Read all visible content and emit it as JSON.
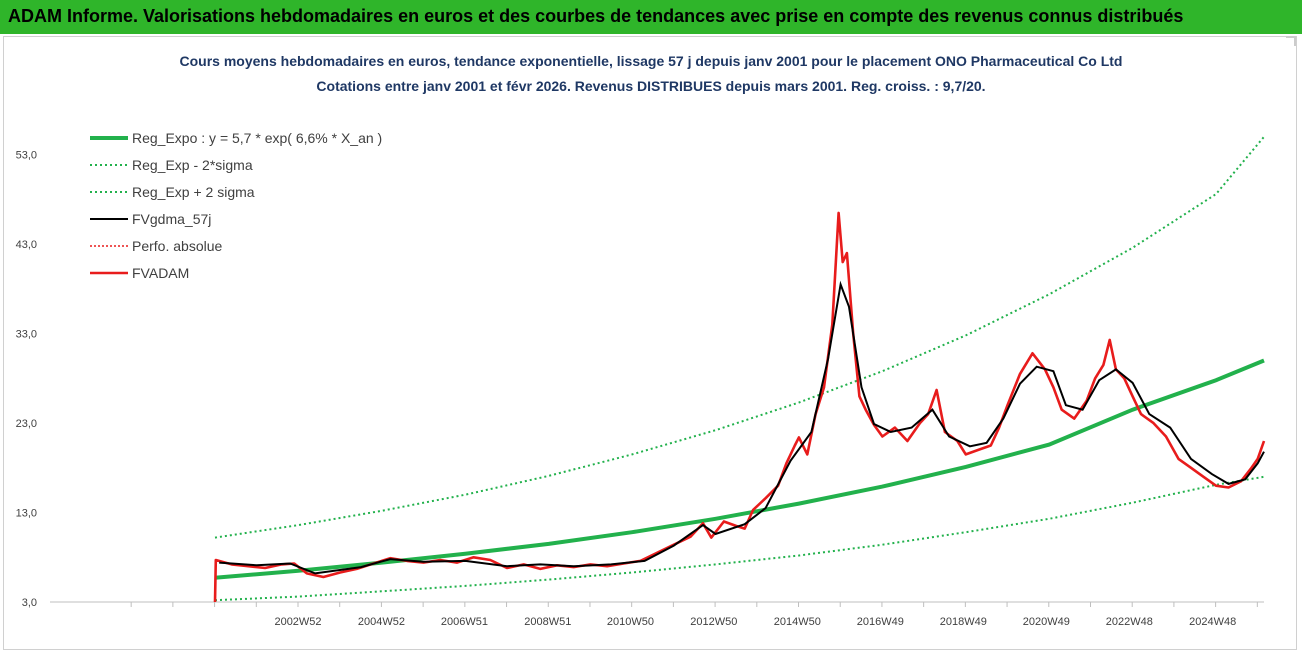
{
  "header": {
    "title": "ADAM Informe. Valorisations hebdomadaires en euros et des courbes de tendances avec prise en compte des revenus connus distribués",
    "bg_color": "#2fb52a"
  },
  "chart_data": {
    "type": "line",
    "title": "Cours moyens hebdomadaires en euros, tendance exponentielle, lissage 57 j depuis janv 2001 pour le placement ONO Pharmaceutical Co Ltd",
    "subtitle": "Cotations entre janv 2001 et févr 2026. Revenus DISTRIBUES depuis mars 2001. Reg. croiss. : 9,7/20.",
    "xlabel": "",
    "ylabel": "",
    "ylim": [
      3,
      58
    ],
    "xlim": [
      2001.0,
      2026.15
    ],
    "y_ticks": [
      "3,0",
      "13,0",
      "23,0",
      "33,0",
      "43,0",
      "53,0"
    ],
    "y_tick_values": [
      3,
      13,
      23,
      33,
      43,
      53
    ],
    "x_ticks": [
      "2002W52",
      "2004W52",
      "2006W51",
      "2008W51",
      "2010W50",
      "2012W50",
      "2014W50",
      "2016W49",
      "2018W49",
      "2020W49",
      "2022W48",
      "2024W48"
    ],
    "x_tick_values": [
      2002.99,
      2004.99,
      2006.98,
      2008.98,
      2010.96,
      2012.96,
      2014.96,
      2016.95,
      2018.94,
      2020.93,
      2022.92,
      2024.92
    ],
    "grid": false,
    "legend_position": "top-left",
    "colors": {
      "reg_expo": "#22b14c",
      "band": "#22b14c",
      "smooth": "#000000",
      "perf": "#e81c1c",
      "price": "#e81c1c"
    },
    "series": [
      {
        "name": "Reg_Expo : y = 5,7 * exp( 6,6% *  X_an )",
        "role": "reg",
        "style": "thick-green",
        "points": [
          [
            2001.0,
            5.7
          ],
          [
            2003.0,
            6.5
          ],
          [
            2005.0,
            7.4
          ],
          [
            2007.0,
            8.4
          ],
          [
            2009.0,
            9.5
          ],
          [
            2011.0,
            10.8
          ],
          [
            2013.0,
            12.3
          ],
          [
            2015.0,
            14.0
          ],
          [
            2017.0,
            15.9
          ],
          [
            2019.0,
            18.1
          ],
          [
            2021.0,
            20.6
          ],
          [
            2023.0,
            24.5
          ],
          [
            2025.0,
            27.8
          ],
          [
            2026.15,
            30.0
          ]
        ]
      },
      {
        "name": "Reg_Exp - 2*sigma",
        "role": "band",
        "style": "dotted-green",
        "points": [
          [
            2001.0,
            3.2
          ],
          [
            2003.0,
            3.6
          ],
          [
            2005.0,
            4.2
          ],
          [
            2007.0,
            4.8
          ],
          [
            2009.0,
            5.5
          ],
          [
            2011.0,
            6.3
          ],
          [
            2013.0,
            7.2
          ],
          [
            2015.0,
            8.2
          ],
          [
            2017.0,
            9.4
          ],
          [
            2019.0,
            10.8
          ],
          [
            2021.0,
            12.3
          ],
          [
            2023.0,
            14.1
          ],
          [
            2025.0,
            16.1
          ],
          [
            2026.15,
            17.0
          ]
        ]
      },
      {
        "name": "Reg_Exp + 2 sigma",
        "role": "band",
        "style": "dotted-green",
        "points": [
          [
            2001.0,
            10.2
          ],
          [
            2003.0,
            11.6
          ],
          [
            2005.0,
            13.2
          ],
          [
            2007.0,
            15.0
          ],
          [
            2009.0,
            17.1
          ],
          [
            2011.0,
            19.5
          ],
          [
            2013.0,
            22.2
          ],
          [
            2015.0,
            25.3
          ],
          [
            2017.0,
            28.8
          ],
          [
            2019.0,
            32.8
          ],
          [
            2021.0,
            37.4
          ],
          [
            2023.0,
            42.6
          ],
          [
            2025.0,
            48.6
          ],
          [
            2026.15,
            55.0
          ]
        ]
      },
      {
        "name": "FVgdma_57j",
        "role": "smooth",
        "style": "thin-black",
        "points": [
          [
            2001.1,
            7.4
          ],
          [
            2002.0,
            7.1
          ],
          [
            2002.8,
            7.3
          ],
          [
            2003.4,
            6.2
          ],
          [
            2004.5,
            6.9
          ],
          [
            2005.2,
            7.8
          ],
          [
            2006.0,
            7.5
          ],
          [
            2007.0,
            7.6
          ],
          [
            2008.0,
            7.0
          ],
          [
            2008.8,
            7.2
          ],
          [
            2009.6,
            7.0
          ],
          [
            2010.5,
            7.2
          ],
          [
            2011.3,
            7.6
          ],
          [
            2012.0,
            9.3
          ],
          [
            2012.7,
            11.6
          ],
          [
            2013.0,
            10.6
          ],
          [
            2013.7,
            11.7
          ],
          [
            2014.2,
            13.5
          ],
          [
            2014.8,
            18.8
          ],
          [
            2015.3,
            22.0
          ],
          [
            2015.7,
            30.2
          ],
          [
            2016.0,
            38.5
          ],
          [
            2016.2,
            36.0
          ],
          [
            2016.5,
            27.0
          ],
          [
            2016.8,
            22.9
          ],
          [
            2017.2,
            22.0
          ],
          [
            2017.7,
            22.5
          ],
          [
            2018.2,
            24.5
          ],
          [
            2018.6,
            21.5
          ],
          [
            2019.1,
            20.4
          ],
          [
            2019.5,
            20.8
          ],
          [
            2019.9,
            23.5
          ],
          [
            2020.3,
            27.4
          ],
          [
            2020.7,
            29.3
          ],
          [
            2021.1,
            28.8
          ],
          [
            2021.4,
            25.0
          ],
          [
            2021.8,
            24.5
          ],
          [
            2022.2,
            27.8
          ],
          [
            2022.6,
            29.0
          ],
          [
            2023.0,
            27.5
          ],
          [
            2023.4,
            24.0
          ],
          [
            2023.9,
            22.5
          ],
          [
            2024.4,
            19.0
          ],
          [
            2024.9,
            17.3
          ],
          [
            2025.3,
            16.2
          ],
          [
            2025.7,
            16.7
          ],
          [
            2026.0,
            18.5
          ],
          [
            2026.15,
            19.8
          ]
        ]
      },
      {
        "name": "Perfo. absolue",
        "role": "perf",
        "style": "dotted-red",
        "points": []
      },
      {
        "name": "FVADAM",
        "role": "price",
        "style": "thick-red",
        "points": [
          [
            2001.0,
            3.0
          ],
          [
            2001.02,
            7.7
          ],
          [
            2001.4,
            7.2
          ],
          [
            2001.8,
            7.0
          ],
          [
            2002.2,
            6.8
          ],
          [
            2002.6,
            7.2
          ],
          [
            2002.9,
            7.3
          ],
          [
            2003.2,
            6.2
          ],
          [
            2003.6,
            5.8
          ],
          [
            2004.0,
            6.3
          ],
          [
            2004.4,
            6.7
          ],
          [
            2004.8,
            7.3
          ],
          [
            2005.2,
            7.9
          ],
          [
            2005.6,
            7.6
          ],
          [
            2006.0,
            7.4
          ],
          [
            2006.4,
            7.7
          ],
          [
            2006.8,
            7.4
          ],
          [
            2007.2,
            8.0
          ],
          [
            2007.6,
            7.7
          ],
          [
            2008.0,
            6.8
          ],
          [
            2008.4,
            7.2
          ],
          [
            2008.8,
            6.7
          ],
          [
            2009.2,
            7.1
          ],
          [
            2009.6,
            6.9
          ],
          [
            2010.0,
            7.2
          ],
          [
            2010.4,
            7.0
          ],
          [
            2010.8,
            7.3
          ],
          [
            2011.2,
            7.6
          ],
          [
            2011.6,
            8.5
          ],
          [
            2012.0,
            9.4
          ],
          [
            2012.4,
            10.3
          ],
          [
            2012.7,
            11.8
          ],
          [
            2012.9,
            10.2
          ],
          [
            2013.2,
            12.0
          ],
          [
            2013.5,
            11.5
          ],
          [
            2013.7,
            11.2
          ],
          [
            2013.9,
            13.3
          ],
          [
            2014.2,
            14.6
          ],
          [
            2014.5,
            16.0
          ],
          [
            2014.7,
            18.5
          ],
          [
            2014.9,
            20.5
          ],
          [
            2015.0,
            21.4
          ],
          [
            2015.2,
            19.5
          ],
          [
            2015.4,
            24.0
          ],
          [
            2015.6,
            27.0
          ],
          [
            2015.8,
            34.0
          ],
          [
            2015.95,
            46.5
          ],
          [
            2016.05,
            41.0
          ],
          [
            2016.15,
            42.0
          ],
          [
            2016.3,
            33.0
          ],
          [
            2016.45,
            26.0
          ],
          [
            2016.6,
            24.5
          ],
          [
            2016.8,
            22.8
          ],
          [
            2017.0,
            21.5
          ],
          [
            2017.3,
            22.5
          ],
          [
            2017.6,
            21.0
          ],
          [
            2017.9,
            23.0
          ],
          [
            2018.1,
            24.0
          ],
          [
            2018.3,
            26.7
          ],
          [
            2018.5,
            22.0
          ],
          [
            2018.8,
            21.0
          ],
          [
            2019.0,
            19.5
          ],
          [
            2019.3,
            20.0
          ],
          [
            2019.6,
            20.5
          ],
          [
            2019.8,
            22.5
          ],
          [
            2020.0,
            25.0
          ],
          [
            2020.3,
            28.5
          ],
          [
            2020.6,
            30.8
          ],
          [
            2020.9,
            29.0
          ],
          [
            2021.1,
            27.0
          ],
          [
            2021.3,
            24.5
          ],
          [
            2021.6,
            23.5
          ],
          [
            2021.9,
            25.5
          ],
          [
            2022.1,
            28.0
          ],
          [
            2022.3,
            29.5
          ],
          [
            2022.45,
            32.3
          ],
          [
            2022.6,
            29.0
          ],
          [
            2022.8,
            28.0
          ],
          [
            2023.0,
            26.0
          ],
          [
            2023.2,
            24.0
          ],
          [
            2023.5,
            23.0
          ],
          [
            2023.8,
            21.5
          ],
          [
            2024.1,
            19.0
          ],
          [
            2024.4,
            18.0
          ],
          [
            2024.7,
            17.0
          ],
          [
            2025.0,
            16.0
          ],
          [
            2025.3,
            15.8
          ],
          [
            2025.6,
            16.5
          ],
          [
            2025.85,
            18.0
          ],
          [
            2026.0,
            19.0
          ],
          [
            2026.15,
            21.0
          ]
        ]
      }
    ]
  }
}
